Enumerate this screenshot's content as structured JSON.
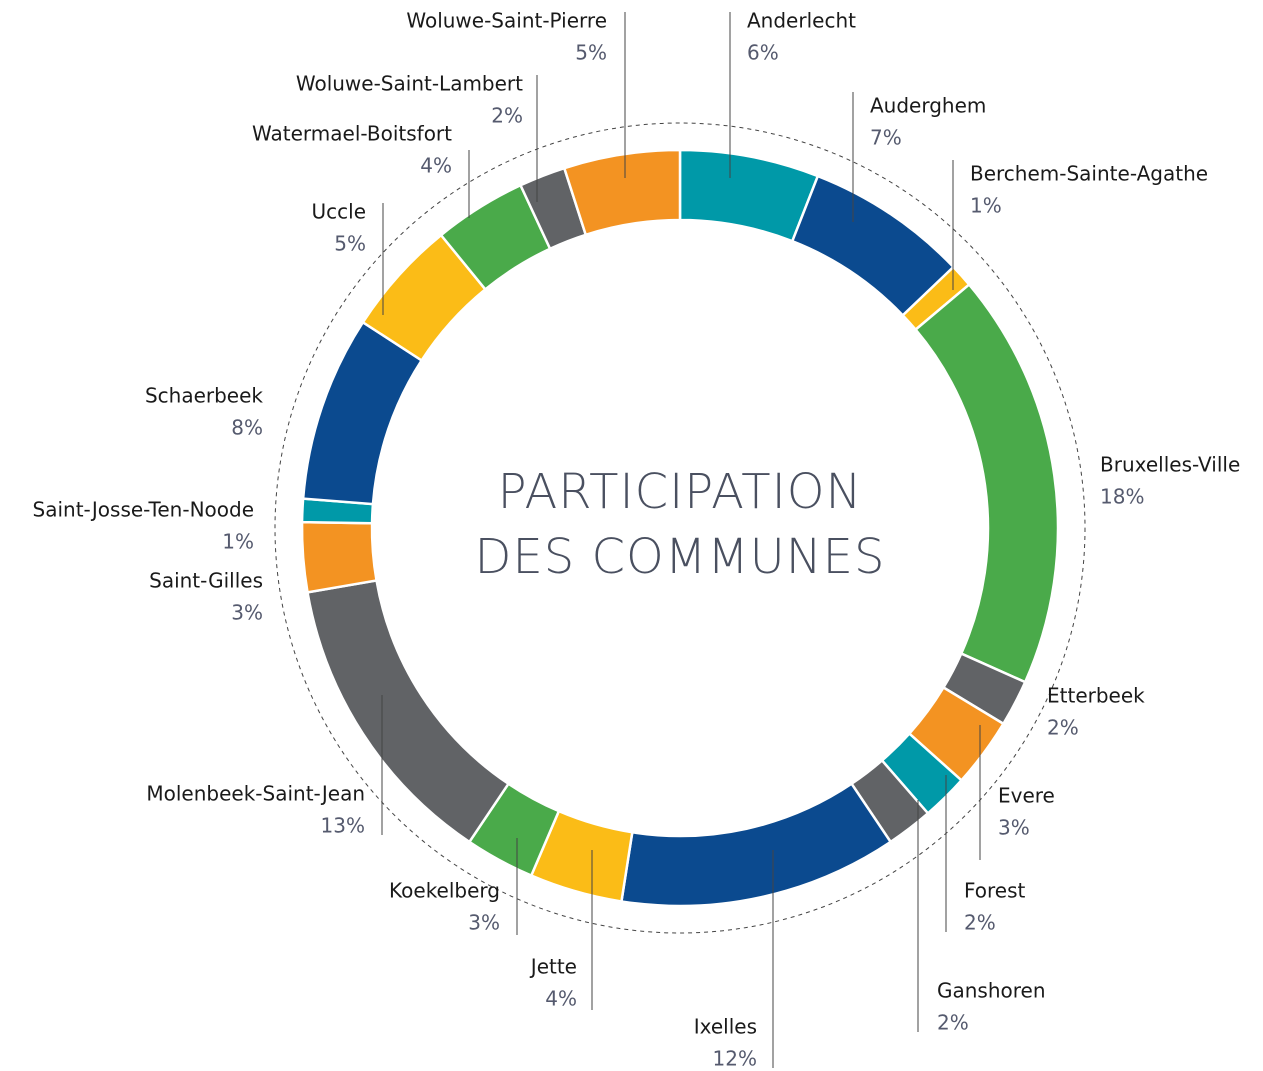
{
  "chart_data": {
    "type": "donut",
    "title": [
      "PARTICIPATION",
      "DES COMMUNES"
    ],
    "categories": [
      "Anderlecht",
      "Auderghem",
      "Berchem-Sainte-Agathe",
      "Bruxelles-Ville",
      "Etterbeek",
      "Evere",
      "Forest",
      "Ganshoren",
      "Ixelles",
      "Jette",
      "Koekelberg",
      "Molenbeek-Saint-Jean",
      "Saint-Gilles",
      "Saint-Josse-Ten-Noode",
      "Schaerbeek",
      "Uccle",
      "Watermael-Boitsfort",
      "Woluwe-Saint-Lambert",
      "Woluwe-Saint-Pierre"
    ],
    "values": [
      6,
      7,
      1,
      18,
      2,
      3,
      2,
      2,
      12,
      4,
      3,
      13,
      3,
      1,
      8,
      5,
      4,
      2,
      5
    ],
    "value_labels": [
      "6%",
      "7%",
      "1%",
      "18%",
      "2%",
      "3%",
      "2%",
      "2%",
      "12%",
      "4%",
      "3%",
      "13%",
      "3%",
      "1%",
      "8%",
      "5%",
      "4%",
      "2%",
      "5%"
    ],
    "colors": [
      "#0099a8",
      "#0b4a8f",
      "#fbbc17",
      "#4aaa4a",
      "#616366",
      "#f39322",
      "#0099a8",
      "#616366",
      "#0b4a8f",
      "#fbbc17",
      "#4aaa4a",
      "#616366",
      "#f39322",
      "#0099a8",
      "#0b4a8f",
      "#fbbc17",
      "#4aaa4a",
      "#616366",
      "#f39322"
    ]
  }
}
